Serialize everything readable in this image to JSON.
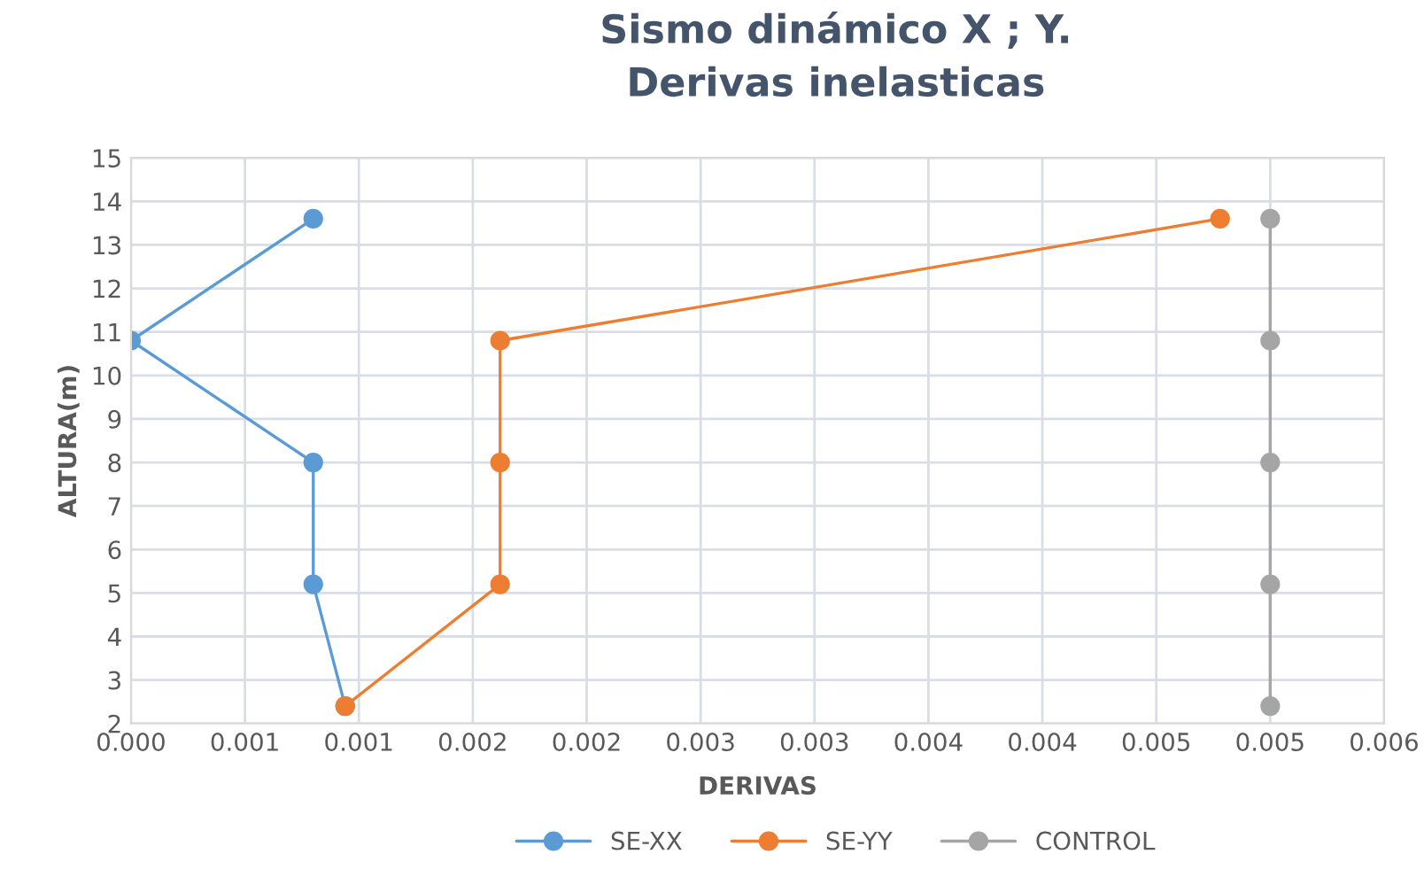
{
  "chart_data": {
    "type": "line",
    "title": "Sismo dinámico X ; Y.\nDerivas inelasticas",
    "xlabel": "DERIVAS",
    "ylabel": "ALTURA(m)",
    "series": [
      {
        "name": "SE-XX",
        "color": "#5b9bd5",
        "x": [
          0.0008,
          0.0,
          0.0008,
          0.0008,
          0.00094
        ],
        "values": [
          13.6,
          10.8,
          8.0,
          5.2,
          2.4
        ]
      },
      {
        "name": "SE-YY",
        "color": "#ed7d31",
        "x": [
          0.00478,
          0.00162,
          0.00162,
          0.00162,
          0.00094
        ],
        "values": [
          13.6,
          10.8,
          8.0,
          5.2,
          2.4
        ]
      },
      {
        "name": "CONTROL",
        "color": "#a5a5a5",
        "x": [
          0.005,
          0.005,
          0.005,
          0.005,
          0.005
        ],
        "values": [
          13.6,
          10.8,
          8.0,
          5.2,
          2.4
        ]
      }
    ],
    "xlim": [
      0,
      0.0055
    ],
    "xticks": [
      {
        "value": 0,
        "label": "0.000"
      },
      {
        "value": 0.0005,
        "label": "0.001"
      },
      {
        "value": 0.001,
        "label": "0.001"
      },
      {
        "value": 0.0015,
        "label": "0.002"
      },
      {
        "value": 0.002,
        "label": "0.002"
      },
      {
        "value": 0.0025,
        "label": "0.003"
      },
      {
        "value": 0.003,
        "label": "0.003"
      },
      {
        "value": 0.0035,
        "label": "0.004"
      },
      {
        "value": 0.004,
        "label": "0.004"
      },
      {
        "value": 0.0045,
        "label": "0.005"
      },
      {
        "value": 0.005,
        "label": "0.005"
      },
      {
        "value": 0.0055,
        "label": "0.006"
      }
    ],
    "ylim": [
      2,
      15
    ],
    "yticks": [
      2,
      3,
      4,
      5,
      6,
      7,
      8,
      9,
      10,
      11,
      12,
      13,
      14,
      15
    ],
    "grid": true,
    "legend": "bottom",
    "marker": "circle",
    "line_style": "solid"
  }
}
